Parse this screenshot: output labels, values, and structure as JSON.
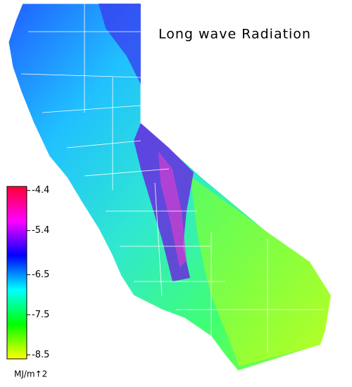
{
  "map": {
    "title": "Long wave Radiation",
    "unit_label": "MJ/m↑2",
    "colorbar": {
      "lim": [
        -8.6,
        -4.3
      ],
      "ticks": [
        -4.4,
        -5.4,
        -6.5,
        -7.5,
        -8.5
      ],
      "colors": [
        "#ffff00",
        "#00ff00",
        "#00ffff",
        "#0000ff",
        "#ff00ff",
        "#ff0033"
      ]
    }
  }
}
